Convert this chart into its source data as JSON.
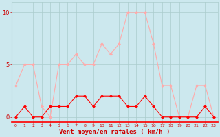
{
  "x": [
    0,
    1,
    2,
    3,
    4,
    5,
    6,
    7,
    8,
    9,
    10,
    11,
    12,
    13,
    14,
    15,
    16,
    17,
    18,
    19,
    20,
    21,
    22,
    23
  ],
  "wind_avg": [
    0,
    1,
    0,
    0,
    1,
    1,
    1,
    2,
    2,
    1,
    2,
    2,
    2,
    1,
    1,
    2,
    1,
    0,
    0,
    0,
    0,
    0,
    1,
    0
  ],
  "wind_gust": [
    3,
    5,
    5,
    1,
    0,
    5,
    5,
    6,
    5,
    5,
    7,
    6,
    7,
    10,
    10,
    10,
    7,
    3,
    3,
    0,
    0,
    3,
    3,
    0
  ],
  "avg_color": "#ff0000",
  "gust_color": "#ffaaaa",
  "bg_color": "#cce8ee",
  "grid_color": "#aacccc",
  "xlabel": "Vent moyen/en rafales ( km/h )",
  "xlabel_color": "#cc0000",
  "tick_color": "#cc0000",
  "ylim": [
    -0.5,
    11.0
  ],
  "yticks": [
    0,
    5,
    10
  ],
  "xlim": [
    -0.5,
    23.5
  ],
  "marker": "D",
  "markersize": 2.0,
  "linewidth": 0.8
}
